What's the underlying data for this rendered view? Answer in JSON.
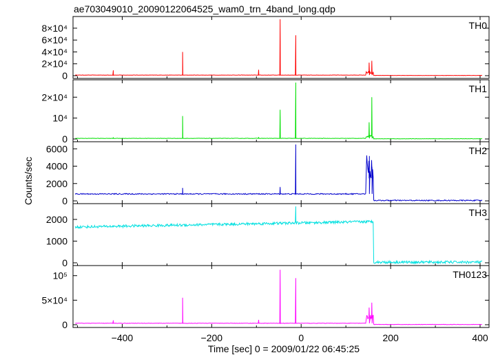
{
  "title": "ae703049010_20090122064525_wam0_trn_4band_long.qdp",
  "xlabel": "Time [sec] 0 = 2009/01/22 06:45:25",
  "ylabel": "Counts/sec",
  "chart_data": {
    "type": "line",
    "title": "ae703049010_20090122064525_wam0_trn_4band_long.qdp",
    "xlabel": "Time [sec] 0 = 2009/01/22 06:45:25",
    "ylabel": "Counts/sec",
    "xlim": [
      -510,
      420
    ],
    "xticks": [
      -400,
      -200,
      0,
      200,
      400
    ],
    "x_tick_labels": [
      "−400",
      "−200",
      "0",
      "200",
      "400"
    ],
    "panels": [
      {
        "name": "TH0",
        "color": "#ff0000",
        "ylim": [
          0,
          95000
        ],
        "yticks": [
          0,
          20000,
          40000,
          60000,
          80000
        ],
        "ytick_labels": [
          "0",
          "2×10⁴",
          "4×10⁴",
          "6×10⁴",
          "8×10⁴"
        ],
        "baseline": 1000,
        "noise": 250,
        "baseline_after": 400,
        "spikes": [
          [
            -420,
            9000
          ],
          [
            -265,
            40000
          ],
          [
            -95,
            10000
          ],
          [
            -47,
            95000
          ],
          [
            -12,
            68000
          ],
          [
            152,
            22000
          ],
          [
            158,
            25000
          ]
        ]
      },
      {
        "name": "TH1",
        "color": "#00e000",
        "ylim": [
          0,
          27000
        ],
        "yticks": [
          0,
          10000,
          20000
        ],
        "ytick_labels": [
          "0",
          "10⁴",
          "2×10⁴"
        ],
        "baseline": 300,
        "noise": 80,
        "baseline_after": 100,
        "spikes": [
          [
            -420,
            800
          ],
          [
            -265,
            11000
          ],
          [
            -95,
            900
          ],
          [
            -47,
            14000
          ],
          [
            -12,
            27000
          ],
          [
            152,
            8000
          ],
          [
            158,
            20000
          ]
        ]
      },
      {
        "name": "TH2",
        "color": "#0000cc",
        "ylim": [
          0,
          6500
        ],
        "yticks": [
          0,
          2000,
          4000,
          6000
        ],
        "ytick_labels": [
          "0",
          "2000",
          "4000",
          "6000"
        ],
        "baseline": 800,
        "noise": 60,
        "baseline_after": 50,
        "spikes": [
          [
            -265,
            1500
          ],
          [
            -47,
            1600
          ],
          [
            -12,
            6500
          ],
          [
            152,
            2600
          ],
          [
            158,
            4000
          ]
        ]
      },
      {
        "name": "TH3",
        "color": "#00e0e0",
        "ylim": [
          0,
          2600
        ],
        "yticks": [
          0,
          1000,
          2000
        ],
        "ytick_labels": [
          "0",
          "1000",
          "2000"
        ],
        "baseline_start": 1650,
        "baseline_end": 1900,
        "noise": 60,
        "baseline_after": 30,
        "spikes": [
          [
            -12,
            2600
          ]
        ]
      },
      {
        "name": "TH0123",
        "color": "#ff00ff",
        "ylim": [
          0,
          115000
        ],
        "yticks": [
          0,
          50000,
          100000
        ],
        "ytick_labels": [
          "0",
          "5×10⁴",
          "10⁵"
        ],
        "baseline": 3000,
        "noise": 400,
        "baseline_after": 500,
        "spikes": [
          [
            -420,
            9000
          ],
          [
            -265,
            55000
          ],
          [
            -95,
            10000
          ],
          [
            -47,
            112000
          ],
          [
            -12,
            95000
          ],
          [
            152,
            35000
          ],
          [
            158,
            45000
          ]
        ]
      }
    ]
  }
}
